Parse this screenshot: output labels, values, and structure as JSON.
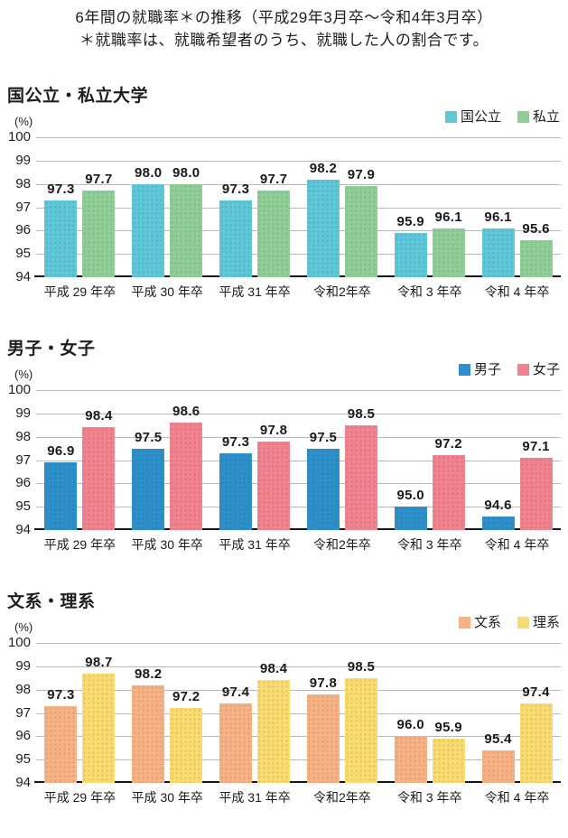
{
  "header": {
    "title": "6年間の就職率＊の推移（平成29年3月卒～令和4年3月卒）",
    "subtitle": "＊就職率は、就職希望者のうち、就職した人の割合です。"
  },
  "chart_data": [
    {
      "type": "bar",
      "title": "国公立・私立大学",
      "ylabel": "(%)",
      "ylim": [
        94,
        100
      ],
      "yticks": [
        100,
        99,
        98,
        97,
        96,
        95,
        94
      ],
      "grid": true,
      "legend_position": "top-right",
      "categories": [
        "平成 29 年卒",
        "平成 30 年卒",
        "平成 31 年卒",
        "令和2年卒",
        "令和 3 年卒",
        "令和 4 年卒"
      ],
      "series": [
        {
          "name": "国公立",
          "color": "#5ec7d8",
          "values": [
            97.3,
            98.0,
            97.3,
            98.2,
            95.9,
            96.1
          ]
        },
        {
          "name": "私立",
          "color": "#8fcf96",
          "values": [
            97.7,
            98.0,
            97.7,
            97.9,
            96.1,
            95.6
          ]
        }
      ]
    },
    {
      "type": "bar",
      "title": "男子・女子",
      "ylabel": "(%)",
      "ylim": [
        94,
        100
      ],
      "yticks": [
        100,
        99,
        98,
        97,
        96,
        95,
        94
      ],
      "grid": true,
      "legend_position": "top-right",
      "categories": [
        "平成 29 年卒",
        "平成 30 年卒",
        "平成 31 年卒",
        "令和2年卒",
        "令和 3 年卒",
        "令和 4 年卒"
      ],
      "series": [
        {
          "name": "男子",
          "color": "#2e90ca",
          "values": [
            96.9,
            97.5,
            97.3,
            97.5,
            95.0,
            94.6
          ]
        },
        {
          "name": "女子",
          "color": "#f2828d",
          "values": [
            98.4,
            98.6,
            97.8,
            98.5,
            97.2,
            97.1
          ]
        }
      ]
    },
    {
      "type": "bar",
      "title": "文系・理系",
      "ylabel": "(%)",
      "ylim": [
        94,
        100
      ],
      "yticks": [
        100,
        99,
        98,
        97,
        96,
        95,
        94
      ],
      "grid": true,
      "legend_position": "top-right",
      "categories": [
        "平成 29 年卒",
        "平成 30 年卒",
        "平成 31 年卒",
        "令和2年卒",
        "令和 3 年卒",
        "令和 4 年卒"
      ],
      "series": [
        {
          "name": "文系",
          "color": "#f7b183",
          "values": [
            97.3,
            98.2,
            97.4,
            97.8,
            96.0,
            95.4
          ]
        },
        {
          "name": "理系",
          "color": "#fadb6e",
          "values": [
            98.7,
            97.2,
            98.4,
            98.5,
            95.9,
            97.4
          ]
        }
      ]
    }
  ],
  "layout": {
    "section_tops": [
      88,
      368,
      648
    ]
  }
}
